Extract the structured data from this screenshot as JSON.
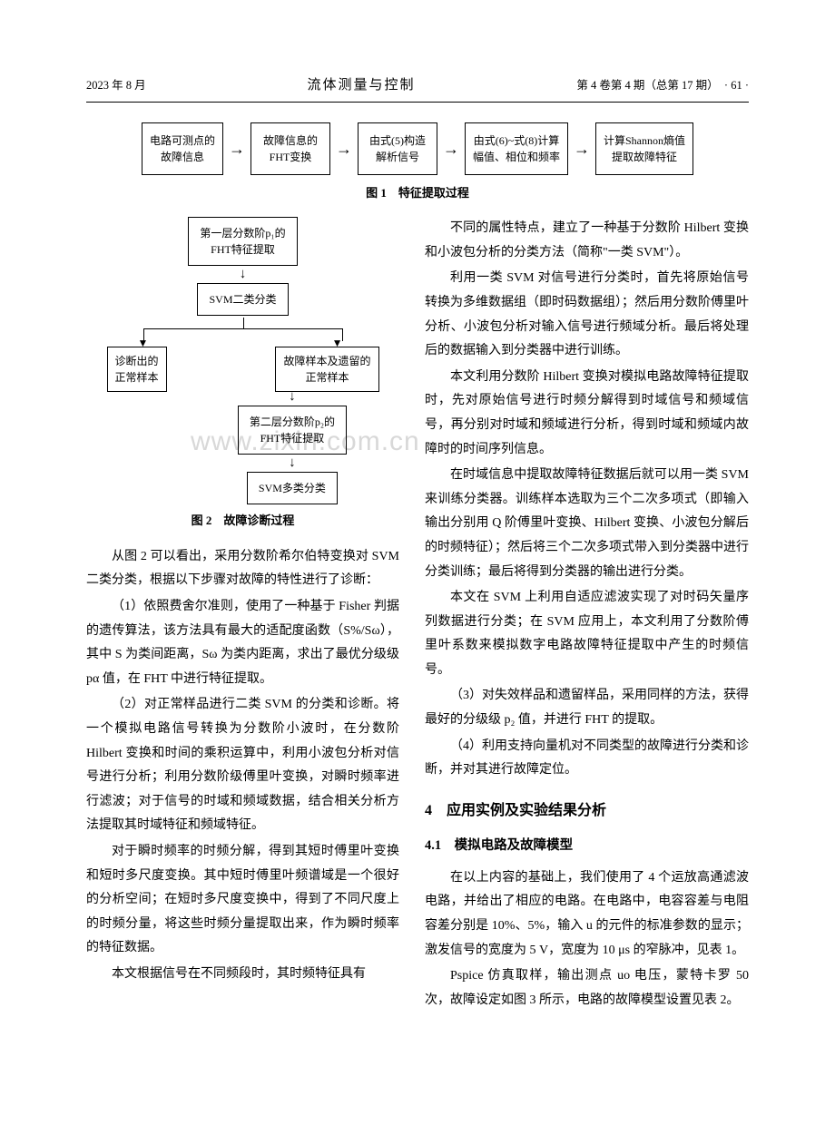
{
  "header": {
    "left": "2023 年 8 月",
    "center": "流体测量与控制",
    "right": "第 4 卷第 4 期（总第 17 期）　· 61 ·"
  },
  "fig1": {
    "boxes": [
      "电路可测点的\n故障信息",
      "故障信息的\nFHT变换",
      "由式(5)构造\n解析信号",
      "由式(6)~式(8)计算\n幅值、相位和频率",
      "计算Shannon熵值\n提取故障特征"
    ],
    "caption": "图 1　特征提取过程"
  },
  "fig2": {
    "b1": "第一层分数阶p₁的\nFHT特征提取",
    "b2": "SVM二类分类",
    "bl": "诊断出的\n正常样本",
    "br": "故障样本及遗留的\n正常样本",
    "b3": "第二层分数阶p₂的\nFHT特征提取",
    "b4": "SVM多类分类",
    "caption": "图 2　故障诊断过程"
  },
  "watermark": "www.zixin.com.cn",
  "left": {
    "p1": "从图 2 可以看出，采用分数阶希尔伯特变换对 SVM 二类分类，根据以下步骤对故障的特性进行了诊断：",
    "p2": "（1）依照费舍尔准则，使用了一种基于 Fisher 判据的遗传算法，该方法具有最大的适配度函数（S%/Sω），其中 S 为类间距离，Sω 为类内距离，求出了最优分级级 pα 值，在 FHT 中进行特征提取。",
    "p3": "（2）对正常样品进行二类 SVM 的分类和诊断。将一个模拟电路信号转换为分数阶小波时，在分数阶 Hilbert 变换和时间的乘积运算中，利用小波包分析对信号进行分析；利用分数阶级傅里叶变换，对瞬时频率进行滤波；对于信号的时域和频域数据，结合相关分析方法提取其时域特征和频域特征。",
    "p4": "对于瞬时频率的时频分解，得到其短时傅里叶变换和短时多尺度变换。其中短时傅里叶频谱域是一个很好的分析空间；在短时多尺度变换中，得到了不同尺度上的时频分量，将这些时频分量提取出来，作为瞬时频率的特征数据。",
    "p5": "本文根据信号在不同频段时，其时频特征具有"
  },
  "right": {
    "p1": "不同的属性特点，建立了一种基于分数阶 Hilbert 变换和小波包分析的分类方法（简称\"一类 SVM\"）。",
    "p2": "利用一类 SVM 对信号进行分类时，首先将原始信号转换为多维数据组（即时码数据组）；然后用分数阶傅里叶分析、小波包分析对输入信号进行频域分析。最后将处理后的数据输入到分类器中进行训练。",
    "p3": "本文利用分数阶 Hilbert 变换对模拟电路故障特征提取时，先对原始信号进行时频分解得到时域信号和频域信号，再分别对时域和频域进行分析，得到时域和频域内故障时的时间序列信息。",
    "p4": "在时域信息中提取故障特征数据后就可以用一类 SVM 来训练分类器。训练样本选取为三个二次多项式（即输入输出分别用 Q 阶傅里叶变换、Hilbert 变换、小波包分解后的时频特征）；然后将三个二次多项式带入到分类器中进行分类训练；最后将得到分类器的输出进行分类。",
    "p5": "本文在 SVM 上利用自适应滤波实现了对时码矢量序列数据进行分类；在 SVM 应用上，本文利用了分数阶傅里叶系数来模拟数字电路故障特征提取中产生的时频信号。",
    "p6": "（3）对失效样品和遗留样品，采用同样的方法，获得最好的分级级 p₂ 值，并进行 FHT 的提取。",
    "p7": "（4）利用支持向量机对不同类型的故障进行分类和诊断，并对其进行故障定位。",
    "sec4": "4　应用实例及实验结果分析",
    "sub41": "4.1　模拟电路及故障模型",
    "p8": "在以上内容的基础上，我们使用了 4 个运放高通滤波电路，并给出了相应的电路。在电路中，电容容差与电阻容差分别是 10%、5%，输入 u 的元件的标准参数的显示；激发信号的宽度为 5 V，宽度为 10 μs 的窄脉冲，见表 1。",
    "p9": "Pspice 仿真取样，输出测点 uo 电压，蒙特卡罗 50 次，故障设定如图 3 所示，电路的故障模型设置见表 2。"
  }
}
